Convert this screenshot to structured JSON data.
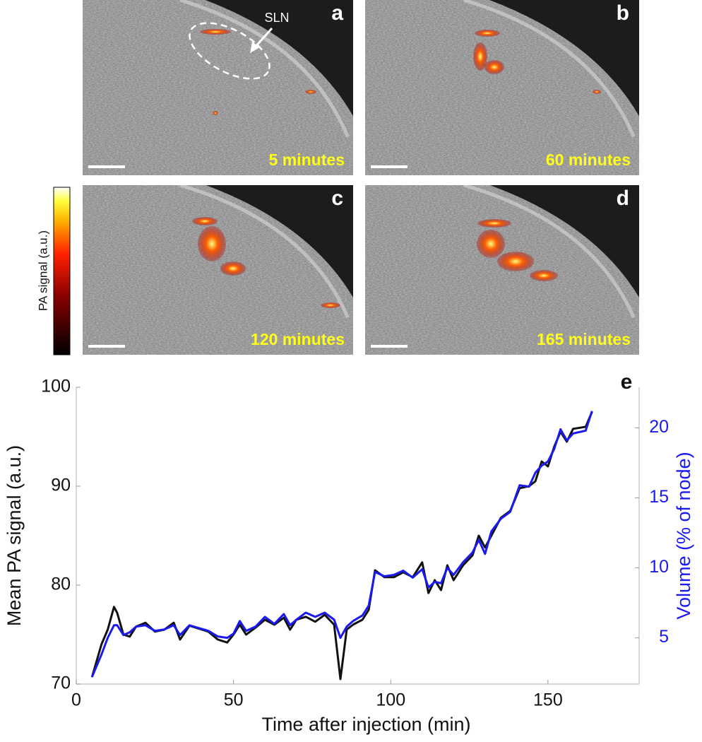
{
  "panels": [
    {
      "letter": "a",
      "time": "5 minutes"
    },
    {
      "letter": "b",
      "time": "60 minutes"
    },
    {
      "letter": "c",
      "time": "120 minutes"
    },
    {
      "letter": "d",
      "time": "165 minutes"
    }
  ],
  "annotation": "SLN",
  "colorbar_label": "PA signal (a.u.)",
  "chart_data": {
    "type": "line",
    "panel_label": "e",
    "xlabel": "Time after injection (min)",
    "ylabel": "Mean PA signal (a.u.)",
    "y2label": "Volume (% of node)",
    "x": [
      5,
      8,
      10,
      12,
      13,
      15,
      17,
      19,
      22,
      25,
      28,
      31,
      33,
      36,
      39,
      42,
      45,
      48,
      50,
      52,
      54,
      57,
      60,
      63,
      66,
      68,
      70,
      73,
      76,
      79,
      82,
      84,
      86,
      88,
      91,
      93,
      95,
      98,
      101,
      104,
      107,
      110,
      112,
      114,
      116,
      118,
      120,
      123,
      126,
      128,
      130,
      132,
      135,
      138,
      141,
      144,
      146,
      148,
      150,
      152,
      154,
      156,
      158,
      162,
      164
    ],
    "xlim": [
      0,
      179
    ],
    "xticks": [
      0,
      50,
      100,
      150
    ],
    "ylim": [
      70,
      100
    ],
    "yticks": [
      70,
      80,
      90,
      100
    ],
    "y2lim": [
      1.7,
      22.9
    ],
    "y2ticks": [
      5,
      10,
      15,
      20
    ],
    "series": [
      {
        "name": "Mean PA signal",
        "color": "#111111",
        "axis": "y",
        "values": [
          70.7,
          74,
          75.5,
          77.8,
          77.2,
          75,
          74.8,
          75.8,
          76.2,
          75.3,
          75.5,
          76.2,
          74.5,
          75.9,
          75.6,
          75.3,
          74.5,
          74.2,
          75,
          76,
          75,
          75.7,
          76.5,
          76,
          76.7,
          75.5,
          76.5,
          76.8,
          76.3,
          77,
          76,
          70.5,
          75.5,
          76,
          76.5,
          77.5,
          81.5,
          80.8,
          80.8,
          81.3,
          80.8,
          82.3,
          79.2,
          80.5,
          79.5,
          82,
          80.5,
          82,
          83,
          85,
          83.8,
          85,
          86.8,
          87.5,
          89.8,
          90,
          90.5,
          92.5,
          92,
          94,
          95.5,
          94.5,
          95.8,
          96,
          97.5
        ]
      },
      {
        "name": "Volume",
        "color": "#1a1aee",
        "axis": "y2",
        "values": [
          2.2,
          3.8,
          5.0,
          5.9,
          5.9,
          5.2,
          5.4,
          5.8,
          5.9,
          5.5,
          5.6,
          5.9,
          5.2,
          5.9,
          5.7,
          5.5,
          5.1,
          5.0,
          5.3,
          6.2,
          5.5,
          5.8,
          6.5,
          6.0,
          6.7,
          5.9,
          6.3,
          6.8,
          6.5,
          6.8,
          6.3,
          5.0,
          5.8,
          6.2,
          6.6,
          7.3,
          9.7,
          9.4,
          9.5,
          9.8,
          9.3,
          9.9,
          8.6,
          9.0,
          8.9,
          10.0,
          9.5,
          10.4,
          11.1,
          12.0,
          11.0,
          12.6,
          13.5,
          14.0,
          15.9,
          15.8,
          16.8,
          17.3,
          17.6,
          18.5,
          19.9,
          19.1,
          19.6,
          19.8,
          21.2
        ]
      }
    ]
  }
}
